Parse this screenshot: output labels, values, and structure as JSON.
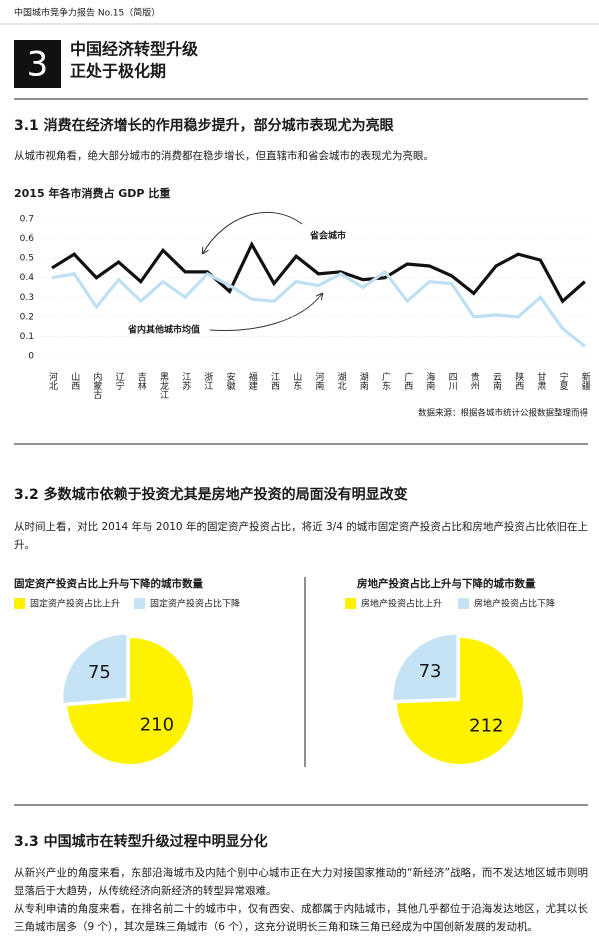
{
  "header": {
    "running_title": "中国城市竞争力报告 No.15（简版）"
  },
  "chapter": {
    "number": "3",
    "title_lines": [
      "中国经济转型升级",
      "正处于极化期"
    ]
  },
  "sections": [
    {
      "heading": "3.1 消费在经济增长的作用稳步提升，部分城市表现尤为亮眼",
      "paragraphs": [
        "从城市视角看，绝大部分城市的消费都在稳步增长，但直辖市和省会城市的表现尤为亮眼。"
      ]
    },
    {
      "heading": "3.2 多数城市依赖于投资尤其是房地产投资的局面没有明显改变",
      "paragraphs": [
        "从时间上看，对比 2014 年与 2010 年的固定资产投资占比，将近 3/4 的城市固定资产投资占比和房地产投资占比依旧在上升。"
      ]
    },
    {
      "heading": "3.3 中国城市在转型升级过程中明显分化",
      "paragraphs": [
        "从新兴产业的角度来看，东部沿海城市及内陆个别中心城市正在大力对接国家推动的“新经济”战略，而不发达地区城市则明显落后于大趋势，从传统经济向新经济的转型异常艰难。",
        "从专利申请的角度来看，在排名前二十的城市中，仅有西安、成都属于内陆城市，其他几乎都位于沿海发达地区，尤其以长三角城市居多（9 个），其次是珠三角城市（6 个），这充分说明长三角和珠三角已经成为中国创新发展的发动机。"
      ]
    }
  ],
  "chart_data": [
    {
      "type": "line",
      "title": "2015 年各市消费占 GDP 比重",
      "categories": [
        "河北",
        "山西",
        "内蒙古",
        "辽宁",
        "吉林",
        "黑龙江",
        "江苏",
        "浙江",
        "安徽",
        "福建",
        "江西",
        "山东",
        "河南",
        "湖北",
        "湖南",
        "广东",
        "广西",
        "海南",
        "四川",
        "贵州",
        "云南",
        "陕西",
        "甘肃",
        "宁夏",
        "新疆"
      ],
      "series": [
        {
          "name": "省会城市",
          "color": "#111111",
          "values": [
            0.45,
            0.52,
            0.4,
            0.48,
            0.38,
            0.54,
            0.43,
            0.43,
            0.33,
            0.57,
            0.37,
            0.51,
            0.42,
            0.43,
            0.39,
            0.4,
            0.47,
            0.46,
            0.41,
            0.32,
            0.46,
            0.52,
            0.49,
            0.28,
            0.38
          ]
        },
        {
          "name": "省内其他城市均值",
          "color": "#bfe0f2",
          "values": [
            0.4,
            0.42,
            0.25,
            0.39,
            0.28,
            0.38,
            0.3,
            0.42,
            0.36,
            0.29,
            0.28,
            0.38,
            0.36,
            0.42,
            0.35,
            0.43,
            0.28,
            0.38,
            0.37,
            0.2,
            0.21,
            0.2,
            0.3,
            0.14,
            0.05
          ]
        }
      ],
      "ylim": [
        0,
        0.7
      ],
      "yticks": [
        0,
        0.1,
        0.2,
        0.3,
        0.4,
        0.5,
        0.6,
        0.7
      ],
      "grid": true,
      "source": "数据来源：根据各城市统计公报数据整理而得"
    },
    {
      "type": "pie",
      "title": "固定资产投资占比上升与下降的城市数量",
      "categories": [
        "固定资产投资占比上升",
        "固定资产投资占比下降"
      ],
      "values": [
        210,
        75
      ],
      "colors": [
        "#fff200",
        "#c6e2f5"
      ]
    },
    {
      "type": "pie",
      "title": "房地产投资占比上升与下降的城市数量",
      "categories": [
        "房地产投资占比上升",
        "房地产投资占比下降"
      ],
      "values": [
        212,
        73
      ],
      "colors": [
        "#fff200",
        "#c6e2f5"
      ]
    }
  ]
}
